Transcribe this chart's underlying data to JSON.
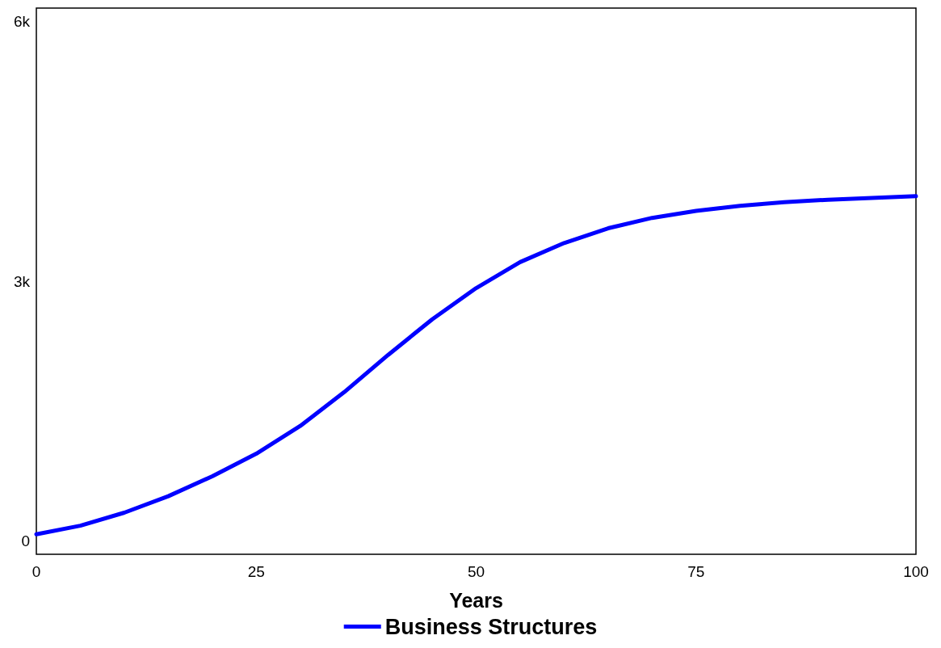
{
  "chart_data": {
    "type": "line",
    "xlabel": "Years",
    "x": [
      0,
      5,
      10,
      15,
      20,
      25,
      30,
      35,
      40,
      45,
      50,
      55,
      60,
      65,
      70,
      75,
      80,
      85,
      90,
      95,
      100
    ],
    "series": [
      {
        "name": "Business Structures",
        "color": "#0000ff",
        "values": [
          80,
          180,
          330,
          520,
          750,
          1010,
          1330,
          1720,
          2150,
          2560,
          2920,
          3220,
          3440,
          3610,
          3730,
          3810,
          3870,
          3910,
          3940,
          3960,
          3980
        ]
      }
    ],
    "xlim": [
      0,
      100
    ],
    "xticks": [
      0,
      25,
      50,
      75,
      100
    ],
    "ylim": [
      -150,
      6150
    ],
    "yticks": [
      0,
      {
        "value": 3000,
        "label": "3k"
      },
      {
        "value": 6000,
        "label": "6k"
      }
    ],
    "grid": false,
    "legend": "bottom",
    "marker": "none",
    "line_style": "solid"
  }
}
